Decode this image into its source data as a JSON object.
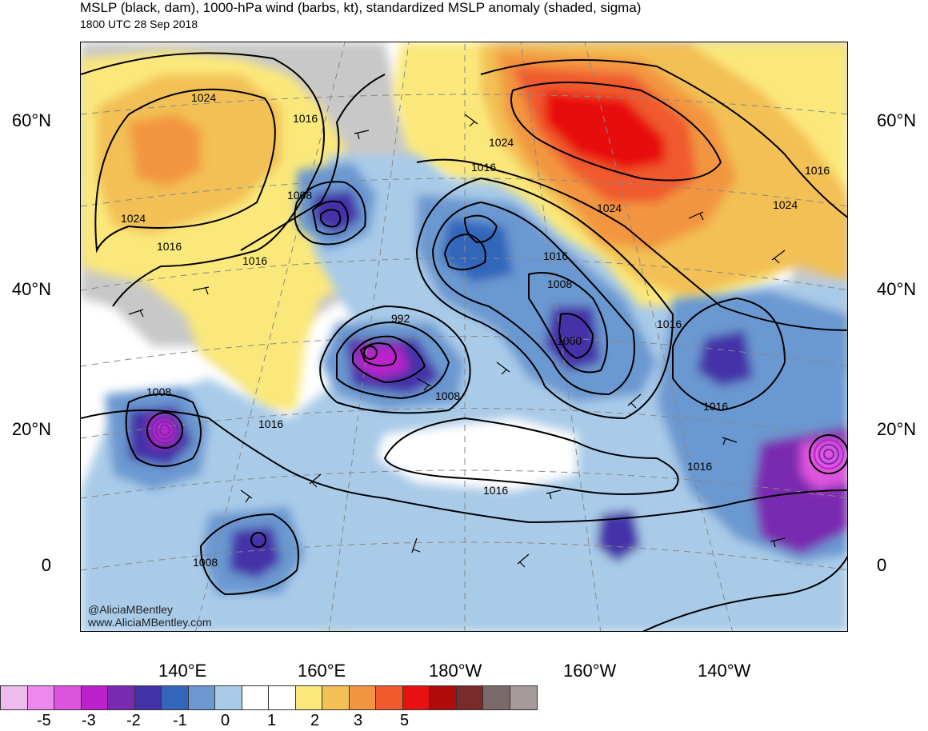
{
  "header": {
    "title": "MSLP (black, dam), 1000-hPa wind (barbs, kt), standardized MSLP anomaly (shaded, sigma)",
    "subtitle": "1800 UTC 28 Sep 2018"
  },
  "lat_labels": [
    "60°N",
    "40°N",
    "20°N",
    "0"
  ],
  "lon_labels": [
    "140°E",
    "160°E",
    "180°W",
    "160°W",
    "140°W"
  ],
  "credit": [
    "@AliciaMBentley",
    "www.AliciaMBentley.com"
  ],
  "isobar_labels": [
    "1024",
    "1024",
    "1016",
    "1016",
    "1008",
    "1016",
    "1016",
    "1024",
    "1024",
    "1016",
    "1008",
    "1000",
    "992",
    "1016",
    "1008",
    "1008",
    "1016",
    "1016",
    "1016",
    "1016",
    "1016",
    "1008",
    "1024"
  ],
  "colorbar": {
    "colors": [
      "#eebbee",
      "#ee88ee",
      "#dd55dd",
      "#bb22cc",
      "#7a2ab0",
      "#4433a8",
      "#3366bb",
      "#6b98d0",
      "#a9cbe8",
      "#ffffff",
      "#ffffff",
      "#fbe87a",
      "#f2c055",
      "#f29540",
      "#f05a2d",
      "#e81010",
      "#b00a0a",
      "#7a2a2a",
      "#7a6a6a",
      "#a69a9a"
    ],
    "labels": [
      "-5",
      "-3",
      "-2",
      "-1",
      "0",
      "1",
      "2",
      "3",
      "5"
    ]
  },
  "palette": {
    "land": "#c8c8c8",
    "ocean": "#ffffff",
    "contour": "#000000"
  }
}
